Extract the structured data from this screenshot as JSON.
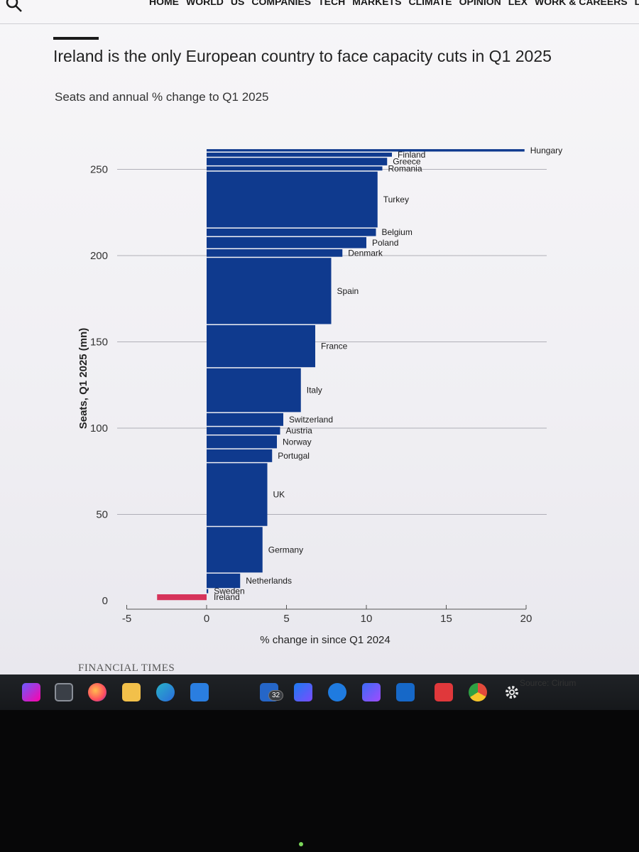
{
  "nav": {
    "items": [
      "HOME",
      "WORLD",
      "US",
      "COMPANIES",
      "TECH",
      "MARKETS",
      "CLIMATE",
      "OPINION",
      "LEX",
      "WORK & CAREERS",
      "LIFE"
    ]
  },
  "title": "Ireland is the only European country to face capacity cuts in Q1 2025",
  "subtitle": "Seats and annual % change to Q1 2025",
  "source": "Source: Cirium",
  "brand": "FINANCIAL TIMES",
  "taskbar": {
    "badge": "32"
  },
  "colors": {
    "bar": "#0f3a8e",
    "negative": "#d6335a",
    "grid": "#9a9aa3",
    "text": "#1a1a1a"
  },
  "chart_data": {
    "type": "bar",
    "orientation": "horizontal-variable-height",
    "xlabel": "% change in since Q1 2024",
    "ylabel": "Seats, Q1 2025 (mn)",
    "xlim": [
      -5,
      20
    ],
    "ylim": [
      0,
      270
    ],
    "xticks": [
      -5,
      0,
      5,
      10,
      15,
      20
    ],
    "yticks": [
      0,
      50,
      100,
      150,
      200,
      250
    ],
    "series": [
      {
        "name": "Hungary",
        "pct_change": 19.9,
        "seats": 2
      },
      {
        "name": "Finland",
        "pct_change": 11.6,
        "seats": 3
      },
      {
        "name": "Greece",
        "pct_change": 11.3,
        "seats": 5
      },
      {
        "name": "Romania",
        "pct_change": 11.0,
        "seats": 3
      },
      {
        "name": "Turkey",
        "pct_change": 10.7,
        "seats": 33
      },
      {
        "name": "Belgium",
        "pct_change": 10.6,
        "seats": 5
      },
      {
        "name": "Poland",
        "pct_change": 10.0,
        "seats": 7
      },
      {
        "name": "Denmark",
        "pct_change": 8.5,
        "seats": 5
      },
      {
        "name": "Spain",
        "pct_change": 7.8,
        "seats": 39
      },
      {
        "name": "France",
        "pct_change": 6.8,
        "seats": 25
      },
      {
        "name": "Italy",
        "pct_change": 5.9,
        "seats": 26
      },
      {
        "name": "Switzerland",
        "pct_change": 4.8,
        "seats": 8
      },
      {
        "name": "Austria",
        "pct_change": 4.6,
        "seats": 5
      },
      {
        "name": "Norway",
        "pct_change": 4.4,
        "seats": 8
      },
      {
        "name": "Portugal",
        "pct_change": 4.1,
        "seats": 8
      },
      {
        "name": "UK",
        "pct_change": 3.8,
        "seats": 37
      },
      {
        "name": "Germany",
        "pct_change": 3.5,
        "seats": 27
      },
      {
        "name": "Netherlands",
        "pct_change": 2.1,
        "seats": 9
      },
      {
        "name": "Sweden",
        "pct_change": 0.1,
        "seats": 3
      },
      {
        "name": "Ireland",
        "pct_change": -3.1,
        "seats": 4
      }
    ]
  }
}
